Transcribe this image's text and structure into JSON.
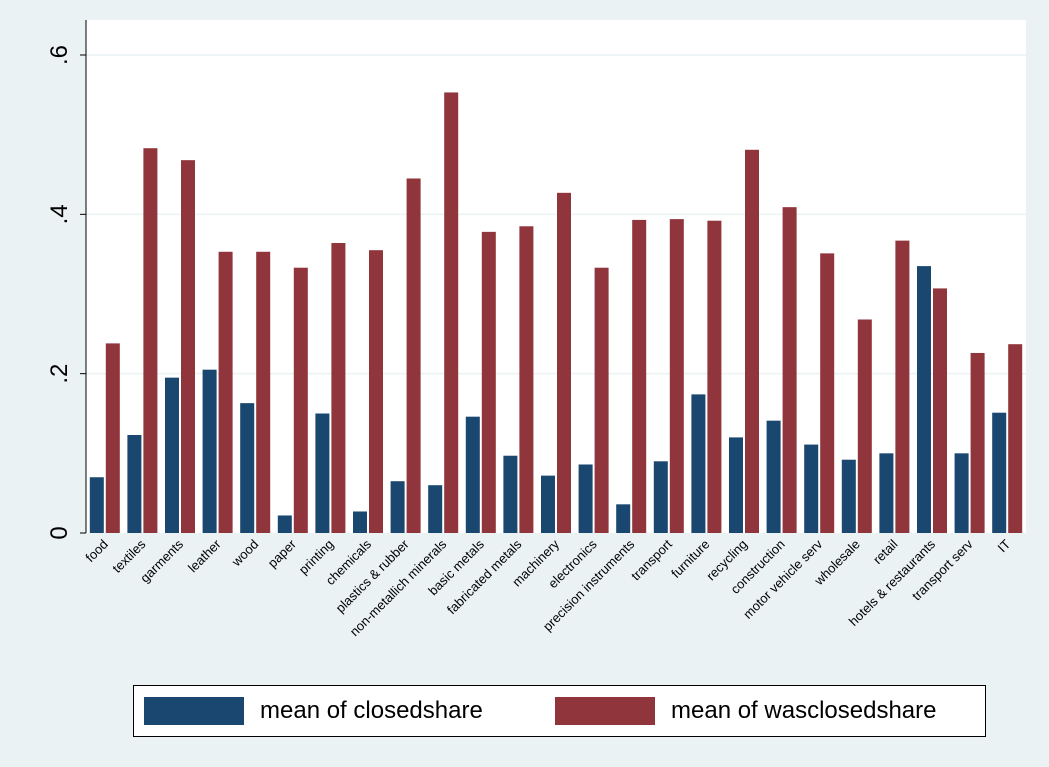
{
  "chart_data": {
    "type": "bar",
    "categories": [
      "food",
      "textiles",
      "garments",
      "leather",
      "wood",
      "paper",
      "printing",
      "chemicals",
      "plastics & rubber",
      "non-metallich minerals",
      "basic metals",
      "fabricated metals",
      "machinery",
      "electronics",
      "precision instruments",
      "transport",
      "furniture",
      "recycling",
      "construction",
      "motor vehicle serv",
      "wholesale",
      "retail",
      "hotels & restaurants",
      "transport serv",
      "IT"
    ],
    "series": [
      {
        "name": "mean of closedshare",
        "color": "#1a476f",
        "values": [
          0.07,
          0.123,
          0.195,
          0.205,
          0.163,
          0.022,
          0.15,
          0.027,
          0.065,
          0.06,
          0.146,
          0.097,
          0.072,
          0.086,
          0.036,
          0.09,
          0.174,
          0.12,
          0.141,
          0.111,
          0.092,
          0.1,
          0.335,
          0.1,
          0.151
        ]
      },
      {
        "name": "mean of wasclosedshare",
        "color": "#90353b",
        "values": [
          0.238,
          0.483,
          0.468,
          0.353,
          0.353,
          0.333,
          0.364,
          0.355,
          0.445,
          0.553,
          0.378,
          0.385,
          0.427,
          0.333,
          0.393,
          0.394,
          0.392,
          0.481,
          0.409,
          0.351,
          0.268,
          0.367,
          0.307,
          0.226,
          0.237
        ]
      }
    ],
    "yticks": [
      "0",
      ".2",
      ".4",
      ".6"
    ],
    "ylim": [
      0,
      0.6
    ],
    "grid": true,
    "legend_position": "bottom"
  }
}
